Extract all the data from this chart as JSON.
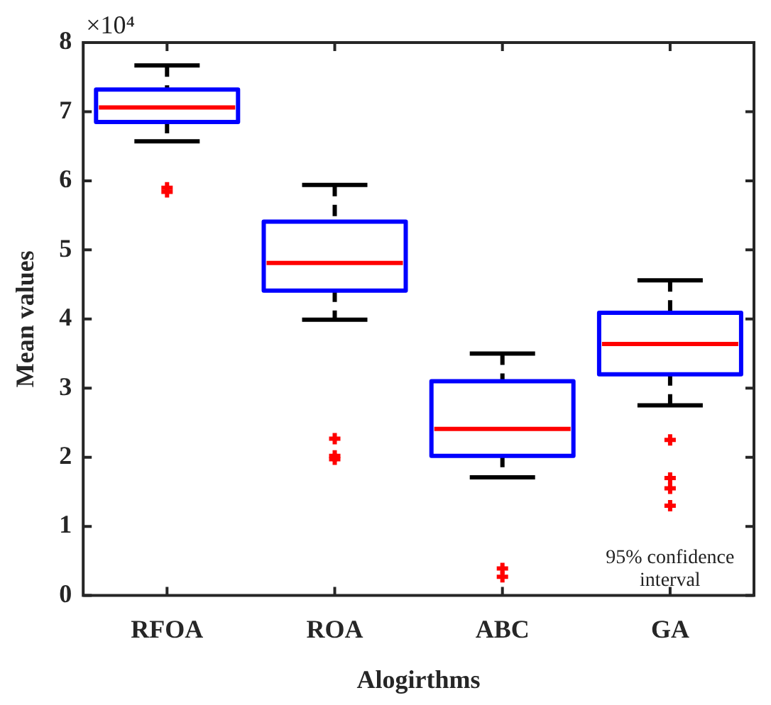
{
  "chart_data": {
    "type": "box",
    "xlabel": "Alogirthms",
    "ylabel": "Mean values",
    "categories": [
      "RFOA",
      "ROA",
      "ABC",
      "GA"
    ],
    "ylim": [
      0,
      8
    ],
    "yticks": [
      0,
      1,
      2,
      3,
      4,
      5,
      6,
      7,
      8
    ],
    "grid": false,
    "legend": false,
    "marker": "cross",
    "series": [
      {
        "color": "#0000ff",
        "boxes": [
          {
            "low": 6.57,
            "q1": 6.85,
            "median": 7.06,
            "q3": 7.32,
            "high": 7.67,
            "outliers": [
              5.9,
              5.84
            ]
          },
          {
            "low": 3.99,
            "q1": 4.41,
            "median": 4.81,
            "q3": 5.41,
            "high": 5.94,
            "outliers": [
              2.27,
              2.02,
              1.97
            ]
          },
          {
            "low": 1.71,
            "q1": 2.02,
            "median": 2.41,
            "q3": 3.1,
            "high": 3.5,
            "outliers": [
              0.39,
              0.27
            ]
          },
          {
            "low": 2.75,
            "q1": 3.2,
            "median": 3.64,
            "q3": 4.09,
            "high": 4.56,
            "outliers": [
              2.25,
              1.7,
              1.55,
              1.3
            ]
          }
        ]
      }
    ],
    "annotations": [
      "×10⁴",
      "95% confidence interval"
    ]
  }
}
